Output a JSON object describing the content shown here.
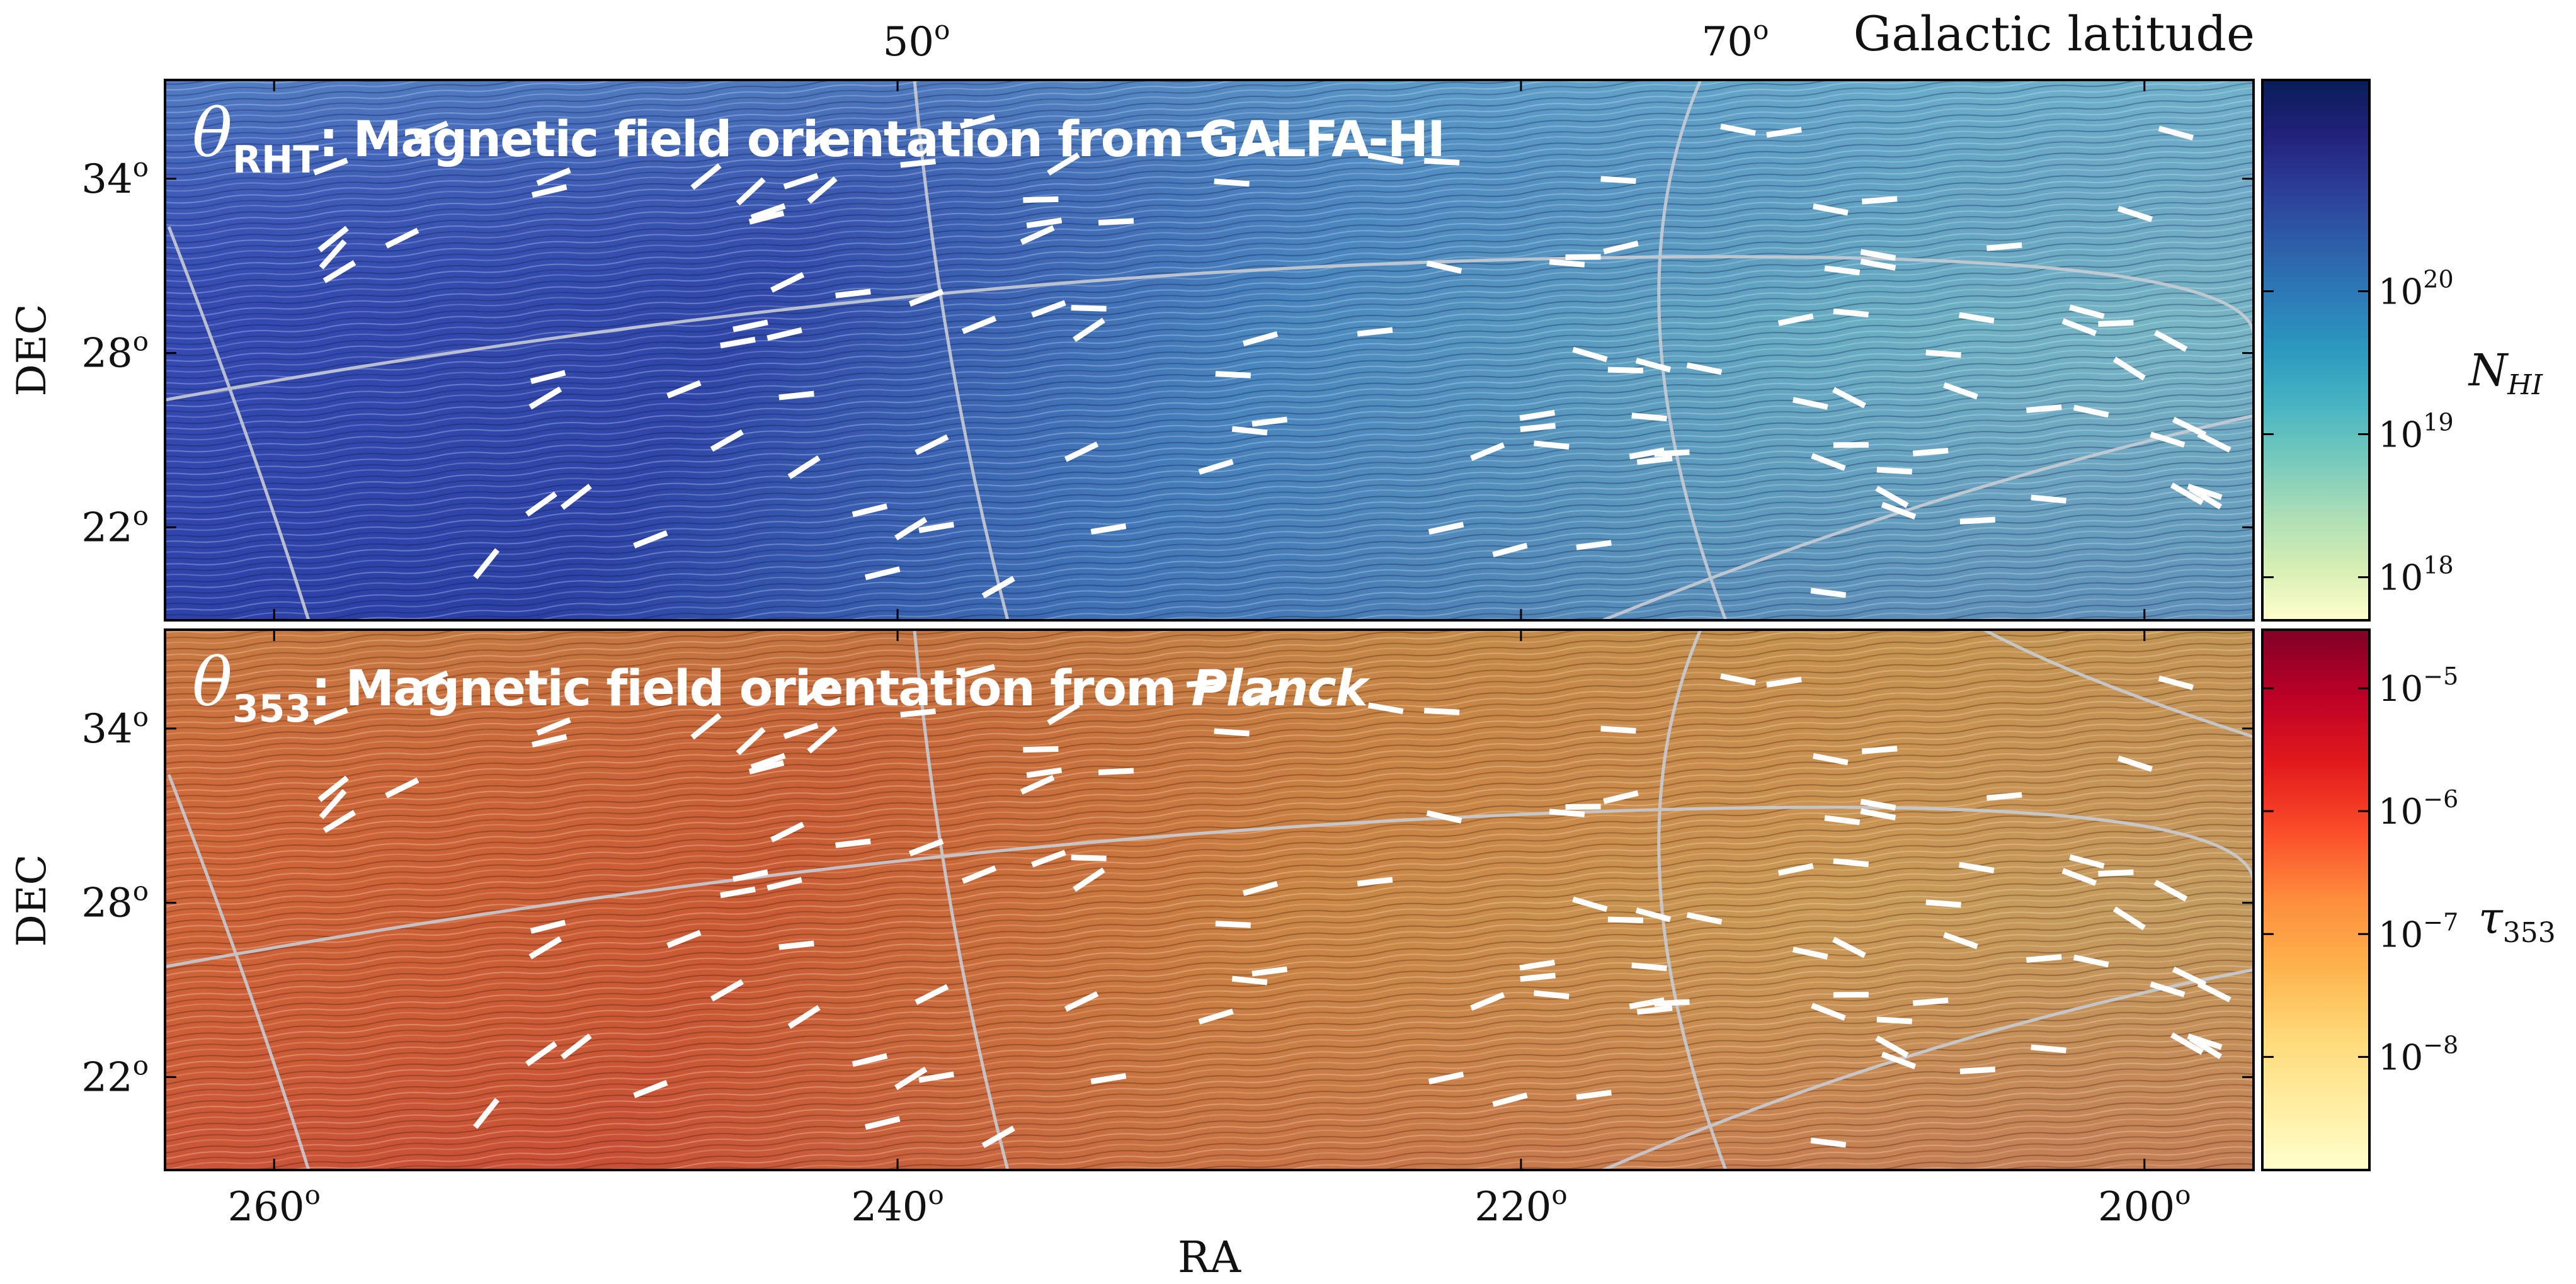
{
  "figure": {
    "galactic_latitude_label": "Galactic latitude",
    "galactic_latitude_ticks": [
      {
        "deg": "50",
        "sup": "o"
      },
      {
        "deg": "70",
        "sup": "o"
      }
    ]
  },
  "chart_data": [
    {
      "type": "heatmap",
      "panel": "top",
      "title": {
        "symbol": "θ",
        "subscript": "RHT",
        "text": ": Magnetic field orientation from GALFA-HI"
      },
      "xlabel": "",
      "ylabel": "DEC",
      "x_axis": {
        "quantity": "RA",
        "unit": "deg",
        "range": [
          263.5,
          196.5
        ],
        "ticks": [
          260,
          240,
          220,
          200
        ],
        "tick_labels_shown": false
      },
      "y_axis": {
        "quantity": "DEC",
        "unit": "deg",
        "range": [
          18.8,
          37.4
        ],
        "ticks": [
          22,
          28,
          34
        ]
      },
      "overlay": "line integral convolution of magnetic field orientation; white segments mark polarization angle samples; grey lines are galactic coordinate grid",
      "colorbar": {
        "label": {
          "base": "N",
          "sub": "HI"
        },
        "scale": "log",
        "range": [
          5e+17,
          3e+21
        ],
        "ticks": [
          {
            "base": "10",
            "exp": "20",
            "log": 20
          },
          {
            "base": "10",
            "exp": "19",
            "log": 19
          },
          {
            "base": "10",
            "exp": "18",
            "log": 18
          }
        ],
        "colormap": [
          "#ffffcc",
          "#d5eeb3",
          "#a9ddb7",
          "#74c9bd",
          "#46b4c2",
          "#2c99bf",
          "#2c7bb7",
          "#2d5da8",
          "#2b3d98",
          "#21217a",
          "#081d58"
        ]
      }
    },
    {
      "type": "heatmap",
      "panel": "bottom",
      "title": {
        "symbol": "θ",
        "subscript": "353",
        "text": ": Magnetic field orientation from ",
        "emphasis": "Planck"
      },
      "xlabel": "RA",
      "ylabel": "DEC",
      "x_axis": {
        "quantity": "RA",
        "unit": "deg",
        "range": [
          263.5,
          196.5
        ],
        "ticks": [
          {
            "value": 260,
            "deg": "260",
            "sup": "o"
          },
          {
            "value": 240,
            "deg": "240",
            "sup": "o"
          },
          {
            "value": 220,
            "deg": "220",
            "sup": "o"
          },
          {
            "value": 200,
            "deg": "200",
            "sup": "o"
          }
        ]
      },
      "y_axis": {
        "quantity": "DEC",
        "unit": "deg",
        "range": [
          18.8,
          37.4
        ],
        "ticks": [
          22,
          28,
          34
        ]
      },
      "overlay": "line integral convolution of magnetic field orientation; white segments mark polarization angle samples; grey lines are galactic coordinate grid",
      "colorbar": {
        "label": {
          "base": "τ",
          "sub": "353"
        },
        "scale": "log",
        "range": [
          1.2e-09,
          3e-05
        ],
        "ticks": [
          {
            "base": "10",
            "exp": "−5",
            "log": -5
          },
          {
            "base": "10",
            "exp": "−6",
            "log": -6
          },
          {
            "base": "10",
            "exp": "−7",
            "log": -7
          },
          {
            "base": "10",
            "exp": "−8",
            "log": -8
          }
        ],
        "colormap": [
          "#ffffcc",
          "#ffeda0",
          "#fed976",
          "#feb24c",
          "#fd8d3c",
          "#fc4e2a",
          "#e31a1c",
          "#bd0026",
          "#800026"
        ]
      }
    }
  ],
  "y_tick_labels": [
    {
      "deg": "34",
      "sup": "o"
    },
    {
      "deg": "28",
      "sup": "o"
    },
    {
      "deg": "22",
      "sup": "o"
    }
  ]
}
